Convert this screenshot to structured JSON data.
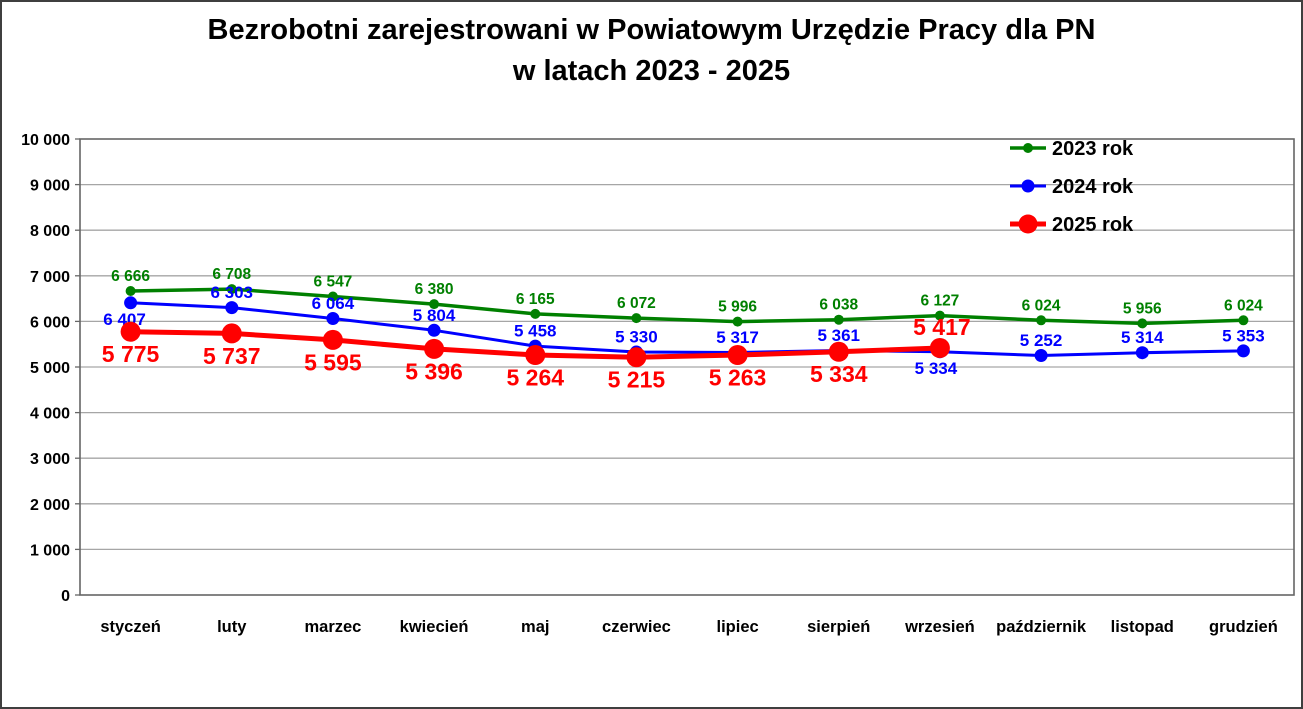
{
  "window": {
    "background": "#ffffff",
    "border_color": "#3f3f3f"
  },
  "title": {
    "line1": "Bezrobotni zarejestrowani w Powiatowym Urzędzie Pracy dla PN",
    "line2": "w latach 2023 - 2025"
  },
  "chart_data": {
    "type": "line",
    "title": "Bezrobotni zarejestrowani w Powiatowym Urzędzie Pracy dla PN w latach 2023 - 2025",
    "xlabel": "",
    "ylabel": "",
    "categories": [
      "styczeń",
      "luty",
      "marzec",
      "kwiecień",
      "maj",
      "czerwiec",
      "lipiec",
      "sierpień",
      "wrzesień",
      "październik",
      "listopad",
      "grudzień"
    ],
    "ylim": [
      0,
      10000
    ],
    "ytick_step": 1000,
    "ytick_values": [
      0,
      1000,
      2000,
      3000,
      4000,
      5000,
      6000,
      7000,
      8000,
      9000,
      10000
    ],
    "ytick_labels": [
      "0",
      "1 000",
      "2 000",
      "3 000",
      "4 000",
      "5 000",
      "6 000",
      "7 000",
      "8 000",
      "9 000",
      "10 000"
    ],
    "grid": true,
    "gridline_color": "#a6a6a6",
    "axis_border_color": "#666666",
    "text_color": "#000000",
    "legend_position": "top-right",
    "series": [
      {
        "name": "2023 rok",
        "year": "2023",
        "color": "#008000",
        "line_width": 3.5,
        "marker_radius": 5,
        "label_font_size": 15.5,
        "label_position": "above",
        "values": [
          6666,
          6708,
          6547,
          6380,
          6165,
          6072,
          5996,
          6038,
          6127,
          6024,
          5956,
          6024
        ],
        "labels": [
          "6 666",
          "6 708",
          "6 547",
          "6 380",
          "6 165",
          "6 072",
          "5 996",
          "6 038",
          "6 127",
          "6 024",
          "5 956",
          "6 024"
        ],
        "label_overrides": {}
      },
      {
        "name": "2024 rok",
        "year": "2024",
        "color": "#0000ff",
        "line_width": 3,
        "marker_radius": 6.5,
        "label_font_size": 17,
        "label_position": "above",
        "values": [
          6407,
          6303,
          6064,
          5804,
          5458,
          5330,
          5317,
          5361,
          5334,
          5252,
          5314,
          5353
        ],
        "labels": [
          "6 407",
          "6 303",
          "6 064",
          "5 804",
          "5 458",
          "5 330",
          "5 317",
          "5 361",
          "5 334",
          "5 252",
          "5 314",
          "5 353"
        ],
        "label_overrides": {
          "0": {
            "position": "below",
            "dx": -6
          },
          "8": {
            "position": "below",
            "dx": -4
          }
        }
      },
      {
        "name": "2025 rok",
        "year": "2025",
        "color": "#ff0000",
        "line_width": 5,
        "marker_radius": 10,
        "label_font_size": 23,
        "label_position": "below",
        "values": [
          5775,
          5737,
          5595,
          5396,
          5264,
          5215,
          5263,
          5334,
          5417
        ],
        "labels": [
          "5 775",
          "5 737",
          "5 595",
          "5 396",
          "5 264",
          "5 215",
          "5 263",
          "5 334",
          "5 417"
        ],
        "label_overrides": {
          "8": {
            "position": "above",
            "dx": 2
          }
        }
      }
    ]
  }
}
